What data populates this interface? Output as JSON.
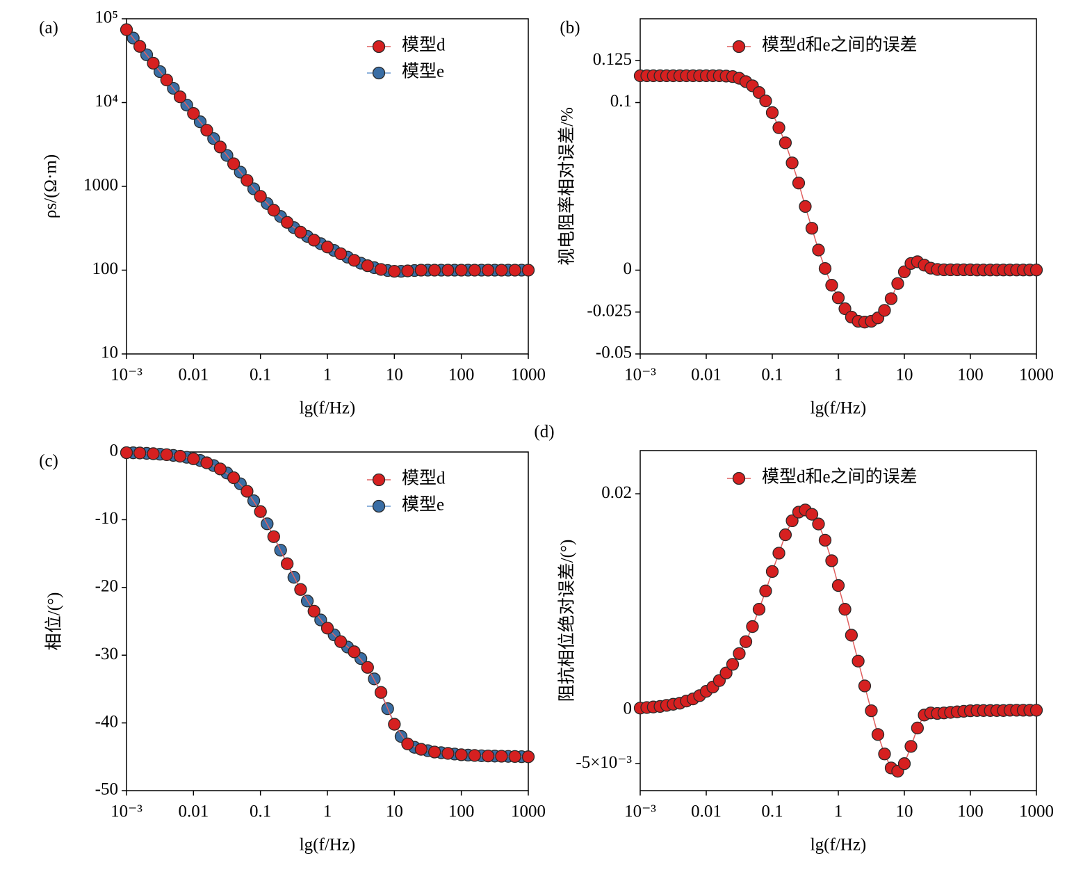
{
  "chart_data": [
    {
      "type": "line",
      "panel": "(a)",
      "ylabel": "ρs/(Ω·m)",
      "xlabel": "lg(f/Hz)",
      "xlog": true,
      "ylog": true,
      "legend": "upper right",
      "xlim": [
        0.001,
        1000
      ],
      "ylim": [
        10,
        100000
      ],
      "xticks": [
        {
          "value": 0.001,
          "label": "10⁻³"
        },
        0.01,
        0.1,
        1,
        10,
        100,
        1000
      ],
      "yticks": [
        10,
        100,
        1000,
        {
          "value": 10000,
          "label": "10⁴"
        },
        {
          "value": 100000,
          "label": "10⁵"
        }
      ],
      "series": [
        {
          "name": "模型d",
          "color": "#d62020",
          "line_color": "#e06060",
          "x": [
            0.001,
            0.00158,
            0.00251,
            0.00398,
            0.00631,
            0.01,
            0.0158,
            0.0251,
            0.0398,
            0.0631,
            0.1,
            0.158,
            0.251,
            0.398,
            0.631,
            1,
            1.58,
            2.51,
            3.98,
            6.31,
            10,
            15.8,
            25.1,
            39.8,
            63.1,
            100,
            158,
            251,
            398,
            631,
            1000
          ],
          "values": [
            74100,
            46800,
            29500,
            18600,
            11700,
            7410,
            4680,
            2950,
            1860,
            1180,
            760,
            519,
            372,
            284,
            228,
            189,
            157,
            131,
            113,
            102,
            97,
            98,
            100,
            100,
            100,
            100,
            100,
            100,
            100,
            100,
            100
          ]
        },
        {
          "name": "模型e",
          "color": "#3a6ea5",
          "line_color": "#6a9ad0",
          "x": [
            0.00126,
            0.002,
            0.00316,
            0.00501,
            0.00794,
            0.0126,
            0.02,
            0.0316,
            0.0501,
            0.0794,
            0.126,
            0.2,
            0.316,
            0.501,
            0.794,
            1.26,
            2,
            3.16,
            5.01,
            7.94,
            12.6,
            20,
            31.6,
            50.1,
            79.4,
            126,
            200,
            316,
            501,
            794
          ],
          "values": [
            58900,
            37200,
            23400,
            14800,
            9330,
            5890,
            3720,
            2340,
            1480,
            935,
            624,
            437,
            322,
            253,
            207,
            172,
            143,
            121,
            107,
            99,
            97,
            99,
            100,
            100,
            100,
            100,
            100,
            100,
            100,
            100
          ]
        }
      ]
    },
    {
      "type": "line",
      "panel": "(b)",
      "ylabel": "视电阻率相对误差/%",
      "xlabel": "lg(f/Hz)",
      "xlog": true,
      "ylog": false,
      "legend": "upper center",
      "xlim": [
        0.001,
        1000
      ],
      "ylim": [
        -0.05,
        0.15
      ],
      "xticks": [
        {
          "value": 0.001,
          "label": "10⁻³"
        },
        0.01,
        0.1,
        1,
        10,
        100,
        1000
      ],
      "yticks": [
        -0.05,
        -0.025,
        0,
        0.1,
        0.125
      ],
      "x": [
        0.001,
        0.00126,
        0.00158,
        0.002,
        0.00251,
        0.00316,
        0.00398,
        0.00501,
        0.00631,
        0.00794,
        0.01,
        0.0126,
        0.0158,
        0.02,
        0.0251,
        0.0316,
        0.0398,
        0.0501,
        0.0631,
        0.0794,
        0.1,
        0.126,
        0.158,
        0.2,
        0.251,
        0.316,
        0.398,
        0.501,
        0.631,
        0.794,
        1,
        1.26,
        1.58,
        2,
        2.51,
        3.16,
        3.98,
        5.01,
        6.31,
        7.94,
        10,
        12.6,
        15.8,
        20,
        25.1,
        31.6,
        39.8,
        50.1,
        63.1,
        79.4,
        100,
        126,
        158,
        200,
        251,
        316,
        398,
        501,
        631,
        794,
        1000
      ],
      "series": [
        {
          "name": "模型d和e之间的误差",
          "color": "#d62020",
          "line_color": "#e06060",
          "values": [
            0.116,
            0.116,
            0.116,
            0.116,
            0.116,
            0.116,
            0.116,
            0.116,
            0.116,
            0.116,
            0.116,
            0.116,
            0.116,
            0.1158,
            0.1155,
            0.1145,
            0.1125,
            0.11,
            0.106,
            0.101,
            0.094,
            0.085,
            0.076,
            0.064,
            0.052,
            0.038,
            0.025,
            0.012,
            0.001,
            -0.009,
            -0.0165,
            -0.023,
            -0.028,
            -0.0305,
            -0.031,
            -0.0305,
            -0.0285,
            -0.024,
            -0.017,
            -0.008,
            -0.001,
            0.004,
            0.005,
            0.003,
            0.0012,
            0.0004,
            0.0002,
            0.0002,
            0.0002,
            0.0002,
            0.0002,
            0.0001,
            0.0001,
            0.0001,
            0.0001,
            0.0001,
            0.0001,
            0.0001,
            0.0001,
            0.0001,
            0.0001
          ]
        }
      ]
    },
    {
      "type": "line",
      "panel": "(c)",
      "ylabel": "相位/(°)",
      "xlabel": "lg(f/Hz)",
      "xlog": true,
      "ylog": false,
      "legend": "upper right",
      "xlim": [
        0.001,
        1000
      ],
      "ylim": [
        -50,
        0
      ],
      "xticks": [
        {
          "value": 0.001,
          "label": "10⁻³"
        },
        0.01,
        0.1,
        1,
        10,
        100,
        1000
      ],
      "yticks": [
        -50,
        -40,
        -30,
        -20,
        -10,
        0
      ],
      "series": [
        {
          "name": "模型d",
          "color": "#d62020",
          "line_color": "#e06060",
          "x": [
            0.001,
            0.00158,
            0.00251,
            0.00398,
            0.00631,
            0.01,
            0.0158,
            0.0251,
            0.0398,
            0.0631,
            0.1,
            0.158,
            0.251,
            0.398,
            0.631,
            1,
            1.58,
            2.51,
            3.98,
            6.31,
            10,
            15.8,
            25.1,
            39.8,
            63.1,
            100,
            158,
            251,
            398,
            631,
            1000
          ],
          "values": [
            -0.1,
            -0.15,
            -0.25,
            -0.4,
            -0.62,
            -1,
            -1.6,
            -2.5,
            -3.8,
            -5.8,
            -8.8,
            -12.5,
            -16.5,
            -20.3,
            -23.5,
            -26,
            -28,
            -29.5,
            -31.8,
            -35.5,
            -40.2,
            -43.1,
            -43.9,
            -44.3,
            -44.5,
            -44.7,
            -44.8,
            -44.88,
            -44.92,
            -44.96,
            -45
          ]
        },
        {
          "name": "模型e",
          "color": "#3a6ea5",
          "line_color": "#6a9ad0",
          "x": [
            0.00126,
            0.002,
            0.00316,
            0.00501,
            0.00794,
            0.0126,
            0.02,
            0.0316,
            0.0501,
            0.0794,
            0.126,
            0.2,
            0.316,
            0.501,
            0.794,
            1.26,
            2,
            3.16,
            5.01,
            7.94,
            12.6,
            20,
            31.6,
            50.1,
            79.4,
            126,
            200,
            316,
            501,
            794
          ],
          "values": [
            -0.12,
            -0.2,
            -0.32,
            -0.5,
            -0.78,
            -1.25,
            -2,
            -3.1,
            -4.7,
            -7.2,
            -10.6,
            -14.5,
            -18.5,
            -22,
            -24.8,
            -27,
            -28.8,
            -30.5,
            -33.5,
            -37.9,
            -42,
            -43.6,
            -44.1,
            -44.4,
            -44.6,
            -44.75,
            -44.85,
            -44.9,
            -44.94,
            -44.98
          ]
        }
      ]
    },
    {
      "type": "line",
      "panel": "(d)",
      "ylabel": "阻抗相位绝对误差/(°)",
      "xlabel": "lg(f/Hz)",
      "xlog": true,
      "ylog": false,
      "legend": "upper center",
      "xlim": [
        0.001,
        1000
      ],
      "ylim": [
        -0.0075,
        0.024
      ],
      "xticks": [
        {
          "value": 0.001,
          "label": "10⁻³"
        },
        0.01,
        0.1,
        1,
        10,
        100,
        1000
      ],
      "yticks": [
        {
          "value": -0.005,
          "label": "-5×10⁻³"
        },
        0,
        0.02
      ],
      "x": [
        0.001,
        0.00126,
        0.00158,
        0.002,
        0.00251,
        0.00316,
        0.00398,
        0.00501,
        0.00631,
        0.00794,
        0.01,
        0.0126,
        0.0158,
        0.02,
        0.0251,
        0.0316,
        0.0398,
        0.0501,
        0.0631,
        0.0794,
        0.1,
        0.126,
        0.158,
        0.2,
        0.251,
        0.316,
        0.398,
        0.501,
        0.631,
        0.794,
        1,
        1.26,
        1.58,
        2,
        2.51,
        3.16,
        3.98,
        5.01,
        6.31,
        7.94,
        10,
        12.6,
        15.8,
        20,
        25.1,
        31.6,
        39.8,
        50.1,
        63.1,
        79.4,
        100,
        126,
        158,
        200,
        251,
        316,
        398,
        501,
        631,
        794,
        1000
      ],
      "series": [
        {
          "name": "模型d和e之间的误差",
          "color": "#d62020",
          "line_color": "#e06060",
          "values": [
            0.00015,
            0.0002,
            0.00025,
            0.0003,
            0.0004,
            0.0005,
            0.0006,
            0.0008,
            0.001,
            0.0013,
            0.0017,
            0.0021,
            0.0027,
            0.0034,
            0.0042,
            0.0052,
            0.0063,
            0.0077,
            0.0093,
            0.011,
            0.0128,
            0.0145,
            0.0162,
            0.0175,
            0.0183,
            0.0185,
            0.0181,
            0.0172,
            0.0157,
            0.0138,
            0.0115,
            0.0093,
            0.0069,
            0.0045,
            0.0022,
            -0.0001,
            -0.0023,
            -0.0041,
            -0.0054,
            -0.0057,
            -0.005,
            -0.0034,
            -0.0017,
            -0.0005,
            -0.0003,
            -0.00035,
            -0.0003,
            -0.00025,
            -0.0002,
            -0.00015,
            -0.0001,
            -8e-05,
            -8e-05,
            -8e-05,
            -8e-05,
            -8e-05,
            -5e-05,
            -5e-05,
            -5e-05,
            -5e-05,
            -5e-05
          ]
        }
      ]
    }
  ]
}
